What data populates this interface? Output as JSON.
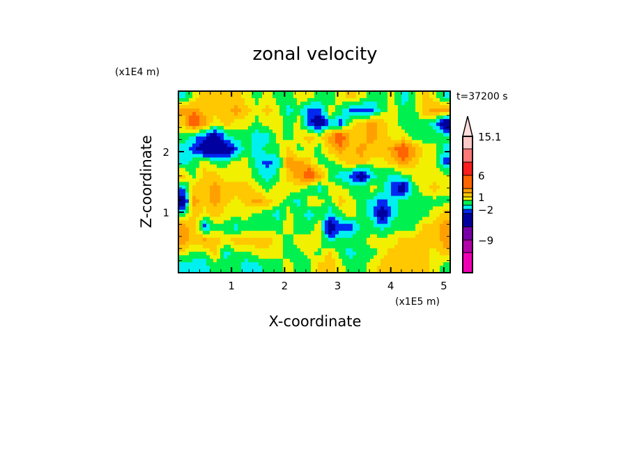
{
  "chart_data": {
    "type": "heatmap",
    "title": "zonal velocity",
    "time_label": "t=37200 s",
    "xlabel": "X-coordinate",
    "ylabel": "Z-coordinate",
    "x_scale_label": "(x1E5 m)",
    "y_scale_label": "(x1E4 m)",
    "xlim": [
      0,
      5.12
    ],
    "ylim": [
      0,
      3.0
    ],
    "x_ticks": [
      "1",
      "2",
      "3",
      "4",
      "5"
    ],
    "x_tick_values": [
      1,
      2,
      3,
      4,
      5
    ],
    "y_ticks": [
      "1",
      "2"
    ],
    "y_tick_values": [
      1,
      2
    ],
    "levels": [
      -15,
      -12,
      -9,
      -6,
      -3,
      -2,
      -1,
      0,
      1,
      2,
      3,
      6,
      9,
      12,
      15.1
    ],
    "colorbar_labels": [
      {
        "text": "15.1",
        "value": 15.1
      },
      {
        "text": "6",
        "value": 6
      },
      {
        "text": "1",
        "value": 1
      },
      {
        "text": "−2",
        "value": -2
      },
      {
        "text": "−9",
        "value": -9
      }
    ],
    "colors": [
      "#f000b4",
      "#b400a8",
      "#7800a8",
      "#0000a0",
      "#0028f0",
      "#00f0f0",
      "#00f050",
      "#f0f000",
      "#ffc800",
      "#ffa000",
      "#ff6400",
      "#ff1e1e",
      "#ff7878",
      "#ffc8c8"
    ],
    "extend_color": "#ffdcdc",
    "values": [
      [
        -1.5,
        0.5,
        1.5,
        1.5,
        1.5,
        1.5,
        0.5,
        -0.5,
        0.5,
        -0.5,
        -0.5,
        0.5,
        0.5,
        -0.5,
        -0.5,
        0.5,
        1.5,
        0.5,
        -0.5,
        -0.5,
        0.5,
        -1.5,
        -0.5,
        1.5,
        0.5,
        -1.5
      ],
      [
        2.5,
        2.5,
        1.5,
        1.5,
        1.5,
        2.5,
        1.5,
        0.5,
        1.5,
        0.5,
        -1.5,
        -0.5,
        -2.5,
        -2.5,
        0.5,
        -0.5,
        -2.5,
        -2.5,
        -2.5,
        -0.5,
        0.5,
        -0.5,
        -0.5,
        1.5,
        2.5,
        2.5
      ],
      [
        1.5,
        4.5,
        2.5,
        0.5,
        1.5,
        0.5,
        0.5,
        -0.5,
        0.5,
        0.5,
        -0.5,
        0.5,
        -2.5,
        -4.5,
        -1.5,
        -2.5,
        0.5,
        1.5,
        2.5,
        1.5,
        0.5,
        -0.5,
        -0.5,
        -0.5,
        -1.5,
        -4.5
      ],
      [
        -0.5,
        -1.5,
        -2.5,
        -4.5,
        -1.5,
        -0.5,
        -0.5,
        -1.5,
        -1.5,
        0.5,
        -0.5,
        0.5,
        1.5,
        0.5,
        2.5,
        4.5,
        1.5,
        1.5,
        2.5,
        1.5,
        0.5,
        0.5,
        -0.5,
        -0.5,
        -0.5,
        -0.5
      ],
      [
        -1.5,
        -2.5,
        -4.5,
        -4.5,
        -4.5,
        -2.5,
        -0.5,
        -1.5,
        -0.5,
        -0.5,
        1.5,
        -0.5,
        0.5,
        -0.5,
        1.5,
        2.5,
        1.5,
        2.5,
        1.5,
        1.5,
        2.5,
        4.5,
        2.5,
        0.5,
        0.5,
        -1.5
      ],
      [
        -1.5,
        -0.5,
        0.5,
        -0.5,
        -0.5,
        0.5,
        0.5,
        -1.5,
        -2.5,
        -1.5,
        2.5,
        2.5,
        1.5,
        -0.5,
        -0.5,
        0.5,
        1.5,
        1.5,
        0.5,
        0.5,
        1.5,
        2.5,
        1.5,
        0.5,
        0.5,
        -2.5
      ],
      [
        1.5,
        -0.5,
        1.5,
        1.5,
        0.5,
        0.5,
        0.5,
        -0.5,
        -1.5,
        -0.5,
        1.5,
        2.5,
        4.5,
        2.5,
        -0.5,
        -1.5,
        -2.5,
        -4.5,
        -1.5,
        -0.5,
        -1.5,
        -0.5,
        0.5,
        0.5,
        0.5,
        0.5
      ],
      [
        -1.5,
        1.5,
        1.5,
        2.5,
        1.5,
        1.5,
        1.5,
        0.5,
        -0.5,
        0.5,
        0.5,
        0.5,
        -0.5,
        -1.5,
        0.5,
        0.5,
        -0.5,
        -0.5,
        0.5,
        -0.5,
        -2.5,
        -4.5,
        -0.5,
        0.5,
        1.5,
        0.5
      ],
      [
        -4.5,
        2.5,
        1.5,
        2.5,
        1.5,
        0.5,
        1.5,
        2.5,
        1.5,
        0.5,
        -0.5,
        -1.5,
        0.5,
        0.5,
        -0.5,
        1.5,
        0.5,
        -0.5,
        -1.5,
        -2.5,
        -1.5,
        -0.5,
        -0.5,
        -0.5,
        -0.5,
        -0.5
      ],
      [
        -0.5,
        1.5,
        0.5,
        1.5,
        0.5,
        0.5,
        0.5,
        -0.5,
        -0.5,
        -1.5,
        0.5,
        -0.5,
        -1.5,
        -0.5,
        -1.5,
        -0.5,
        0.5,
        -0.5,
        -1.5,
        -4.5,
        -1.5,
        -0.5,
        -0.5,
        -0.5,
        0.5,
        1.5
      ],
      [
        2.5,
        1.5,
        -2.5,
        -0.5,
        -0.5,
        -1.5,
        -0.5,
        -0.5,
        -0.5,
        -0.5,
        0.5,
        -0.5,
        -0.5,
        0.5,
        -4.5,
        -2.5,
        -2.5,
        -0.5,
        -0.5,
        -1.5,
        -0.5,
        -0.5,
        -0.5,
        1.5,
        1.5,
        2.5
      ],
      [
        2.5,
        1.5,
        2.5,
        1.5,
        0.5,
        1.5,
        1.5,
        1.5,
        1.5,
        0.5,
        -0.5,
        0.5,
        0.5,
        0.5,
        -1.5,
        -0.5,
        -0.5,
        -0.5,
        0.5,
        0.5,
        0.5,
        1.5,
        1.5,
        1.5,
        1.5,
        2.5
      ],
      [
        0.5,
        -0.5,
        -0.5,
        1.5,
        -1.5,
        -0.5,
        -0.5,
        0.5,
        0.5,
        0.5,
        -0.5,
        -0.5,
        0.5,
        -0.5,
        1.5,
        -0.5,
        -1.5,
        -0.5,
        -0.5,
        0.5,
        1.5,
        1.5,
        1.5,
        1.5,
        0.5,
        1.5
      ],
      [
        -1.5,
        -1.5,
        -1.5,
        -0.5,
        -0.5,
        -0.5,
        -1.5,
        -1.5,
        -0.5,
        -0.5,
        0.5,
        -0.5,
        -0.5,
        1.5,
        1.5,
        0.5,
        -0.5,
        -0.5,
        0.5,
        1.5,
        1.5,
        1.5,
        1.5,
        1.5,
        0.5,
        -0.5
      ]
    ]
  }
}
